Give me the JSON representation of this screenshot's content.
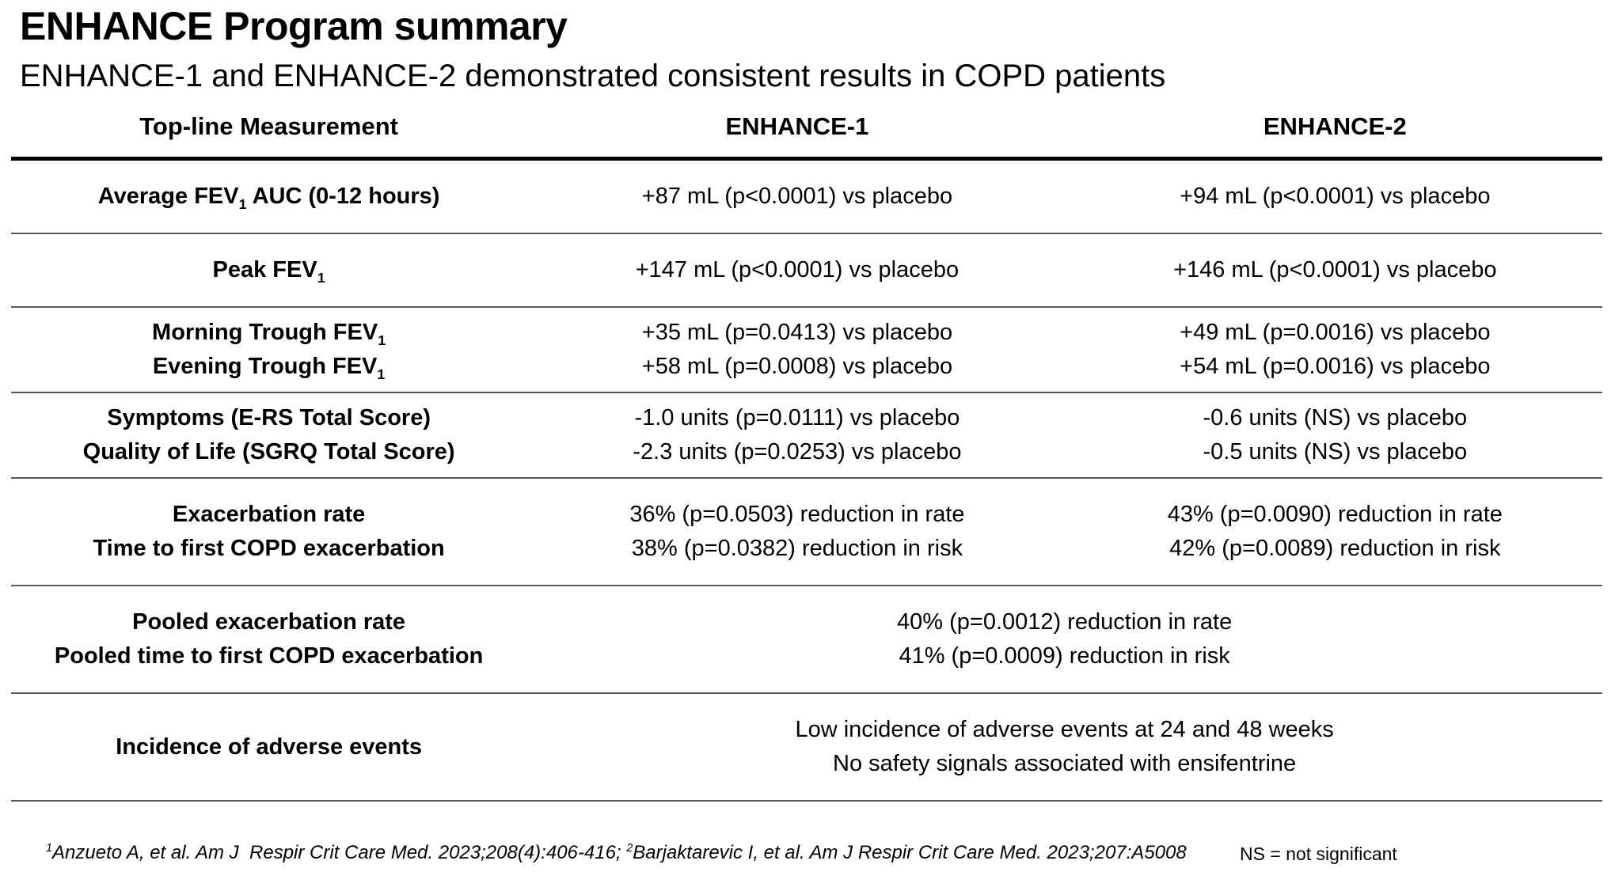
{
  "slide": {
    "title": "ENHANCE Program summary",
    "subtitle": "ENHANCE-1 and ENHANCE-2 demonstrated consistent results in COPD patients"
  },
  "table": {
    "headers": [
      "Top-line Measurement",
      "ENHANCE-1",
      "ENHANCE-2"
    ],
    "rows": [
      {
        "measurement": [
          {
            "pre": "Average FEV",
            "sub": "1",
            "post": " AUC (0-12 hours)"
          }
        ],
        "enhance1": [
          "+87 mL (p<0.0001) vs placebo"
        ],
        "enhance2": [
          "+94 mL (p<0.0001) vs placebo"
        ]
      },
      {
        "measurement": [
          {
            "pre": "Peak FEV",
            "sub": "1",
            "post": ""
          }
        ],
        "enhance1": [
          "+147 mL (p<0.0001) vs placebo"
        ],
        "enhance2": [
          "+146 mL (p<0.0001) vs placebo"
        ]
      },
      {
        "measurement": [
          {
            "pre": "Morning Trough FEV",
            "sub": "1",
            "post": ""
          },
          {
            "pre": "Evening Trough FEV",
            "sub": "1",
            "post": ""
          }
        ],
        "enhance1": [
          "+35 mL (p=0.0413) vs placebo",
          "+58 mL (p=0.0008) vs placebo"
        ],
        "enhance2": [
          "+49 mL (p=0.0016) vs placebo",
          "+54 mL (p=0.0016) vs placebo"
        ]
      },
      {
        "measurement": [
          {
            "pre": "Symptoms (E-RS Total Score)",
            "sub": "",
            "post": ""
          },
          {
            "pre": "Quality of Life (SGRQ Total Score)",
            "sub": "",
            "post": ""
          }
        ],
        "enhance1": [
          "-1.0 units (p=0.0111) vs placebo",
          "-2.3 units (p=0.0253) vs placebo"
        ],
        "enhance2": [
          "-0.6 units (NS) vs placebo",
          "-0.5 units (NS) vs placebo"
        ]
      },
      {
        "measurement": [
          {
            "pre": "Exacerbation rate",
            "sub": "",
            "post": ""
          },
          {
            "pre": "Time to first COPD exacerbation",
            "sub": "",
            "post": ""
          }
        ],
        "enhance1": [
          "36% (p=0.0503) reduction in rate",
          "38% (p=0.0382) reduction in risk"
        ],
        "enhance2": [
          "43% (p=0.0090) reduction in rate",
          "42% (p=0.0089) reduction in risk"
        ]
      },
      {
        "measurement": [
          {
            "pre": "Pooled exacerbation rate",
            "sub": "",
            "post": ""
          },
          {
            "pre": "Pooled time to first COPD exacerbation",
            "sub": "",
            "post": ""
          }
        ],
        "pooled": [
          "40% (p=0.0012) reduction in rate",
          "41% (p=0.0009) reduction in risk"
        ]
      },
      {
        "measurement": [
          {
            "pre": "Incidence of adverse events",
            "sub": "",
            "post": ""
          }
        ],
        "pooled": [
          "Low incidence of adverse events at 24 and 48 weeks",
          "No safety signals associated with ensifentrine"
        ]
      }
    ]
  },
  "footer": {
    "citations": [
      {
        "sup": "1",
        "text": "Anzueto A, et al. Am J  Respir Crit Care Med. 2023;208(4):406-416; "
      },
      {
        "sup": "2",
        "text": "Barjaktarevic I, et al. Am J Respir Crit Care Med. 2023;207:A5008"
      }
    ],
    "ns_note": "NS = not significant"
  },
  "colors": {
    "background": "#ffffff",
    "text": "#000000",
    "header_rule": "#000000",
    "row_separator": "#595959"
  }
}
